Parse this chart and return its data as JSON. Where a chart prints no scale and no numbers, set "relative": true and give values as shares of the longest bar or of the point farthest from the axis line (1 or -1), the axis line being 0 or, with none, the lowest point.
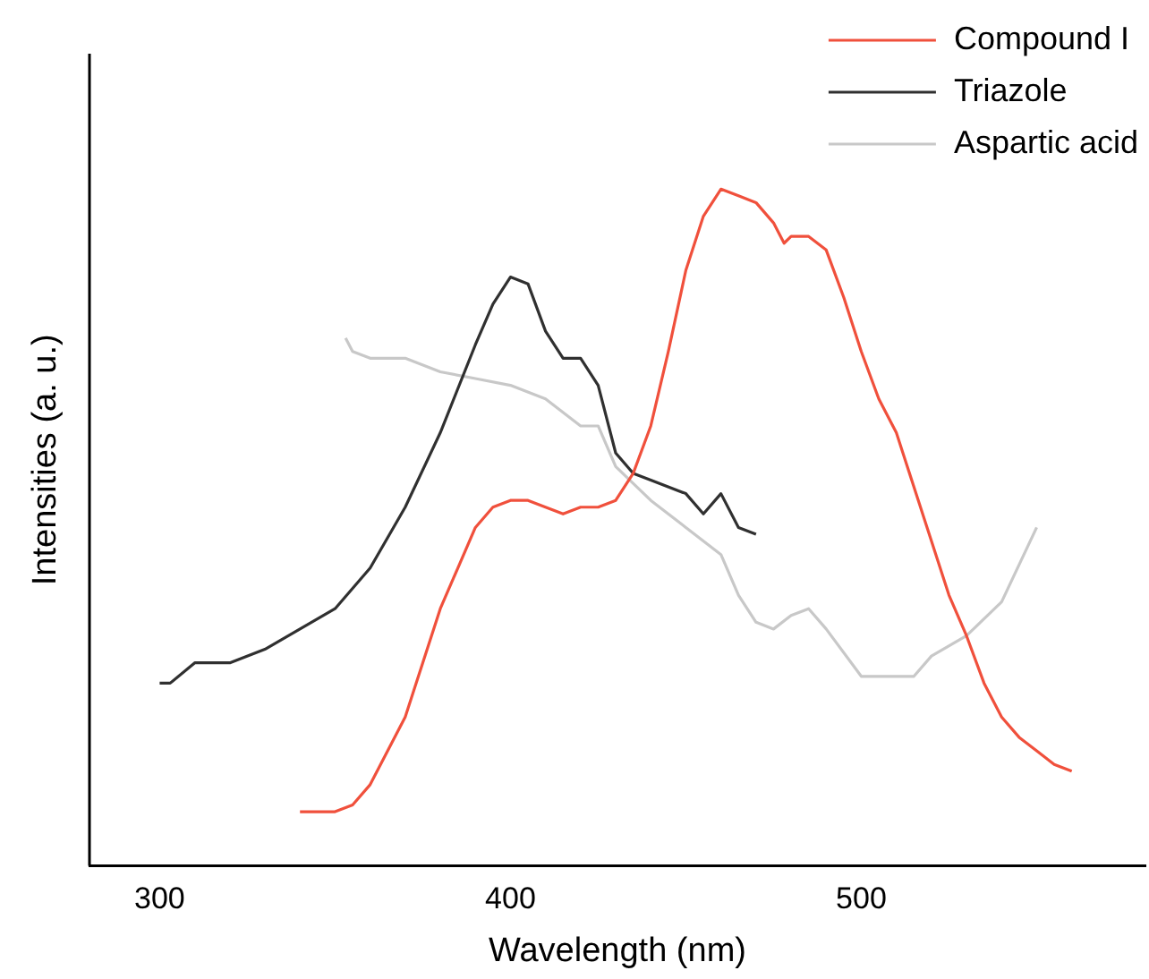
{
  "chart_data": {
    "type": "line",
    "xlabel": "Wavelength (nm)",
    "ylabel": "Intensities (a. u.)",
    "relative": true,
    "xlim": [
      280,
      581
    ],
    "xticks": [
      300,
      400,
      500
    ],
    "legend": "top right",
    "marker": "none",
    "line_style": "solid",
    "grid": false,
    "series": [
      {
        "name": "Compound I",
        "color": "#f0503c",
        "x": [
          340,
          350,
          355,
          360,
          365,
          370,
          375,
          380,
          385,
          390,
          395,
          400,
          405,
          410,
          415,
          420,
          425,
          430,
          435,
          440,
          445,
          450,
          455,
          460,
          465,
          470,
          475,
          478,
          480,
          485,
          490,
          495,
          500,
          505,
          510,
          515,
          520,
          525,
          530,
          535,
          540,
          545,
          550,
          555,
          560
        ],
        "values": [
          0.08,
          0.08,
          0.09,
          0.12,
          0.17,
          0.22,
          0.3,
          0.38,
          0.44,
          0.5,
          0.53,
          0.54,
          0.54,
          0.53,
          0.52,
          0.53,
          0.53,
          0.54,
          0.58,
          0.65,
          0.76,
          0.88,
          0.96,
          1,
          0.99,
          0.98,
          0.95,
          0.92,
          0.93,
          0.93,
          0.91,
          0.84,
          0.76,
          0.69,
          0.64,
          0.56,
          0.48,
          0.4,
          0.34,
          0.27,
          0.22,
          0.19,
          0.17,
          0.15,
          0.14
        ]
      },
      {
        "name": "Triazole",
        "color": "#303030",
        "x": [
          300,
          303,
          310,
          315,
          320,
          330,
          340,
          350,
          360,
          370,
          380,
          390,
          395,
          400,
          405,
          410,
          415,
          420,
          425,
          430,
          435,
          440,
          450,
          455,
          460,
          465,
          470
        ],
        "values": [
          0.27,
          0.27,
          0.3,
          0.3,
          0.3,
          0.32,
          0.35,
          0.38,
          0.44,
          0.53,
          0.64,
          0.77,
          0.83,
          0.87,
          0.86,
          0.79,
          0.75,
          0.75,
          0.71,
          0.61,
          0.58,
          0.57,
          0.55,
          0.52,
          0.55,
          0.5,
          0.49
        ]
      },
      {
        "name": "Aspartic acid",
        "color": "#c8c8c8",
        "x": [
          353,
          355,
          360,
          370,
          380,
          390,
          400,
          410,
          420,
          425,
          430,
          440,
          450,
          460,
          465,
          470,
          475,
          480,
          485,
          490,
          500,
          505,
          510,
          515,
          520,
          530,
          540,
          550
        ],
        "values": [
          0.78,
          0.76,
          0.75,
          0.75,
          0.73,
          0.72,
          0.71,
          0.69,
          0.65,
          0.65,
          0.59,
          0.54,
          0.5,
          0.46,
          0.4,
          0.36,
          0.35,
          0.37,
          0.38,
          0.35,
          0.28,
          0.28,
          0.28,
          0.28,
          0.31,
          0.34,
          0.39,
          0.5
        ]
      }
    ]
  }
}
